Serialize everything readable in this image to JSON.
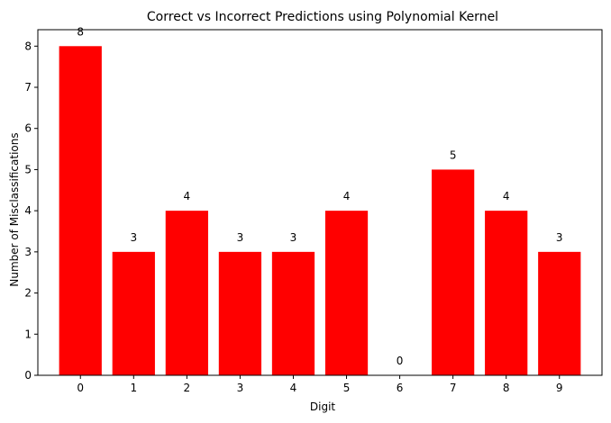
{
  "chart_data": {
    "type": "bar",
    "title": "Correct vs Incorrect Predictions using Polynomial Kernel",
    "xlabel": "Digit",
    "ylabel": "Number of Misclassifications",
    "categories": [
      "0",
      "1",
      "2",
      "3",
      "4",
      "5",
      "6",
      "7",
      "8",
      "9"
    ],
    "values": [
      8,
      3,
      4,
      3,
      3,
      4,
      0,
      5,
      4,
      3
    ],
    "data_labels": [
      "8",
      "3",
      "4",
      "3",
      "3",
      "4",
      "0",
      "5",
      "4",
      "3"
    ],
    "ylim": [
      0,
      8.4
    ],
    "yticks": [
      0,
      1,
      2,
      3,
      4,
      5,
      6,
      7,
      8
    ],
    "bar_color": "#ff0000",
    "grid": false,
    "legend": "none"
  }
}
